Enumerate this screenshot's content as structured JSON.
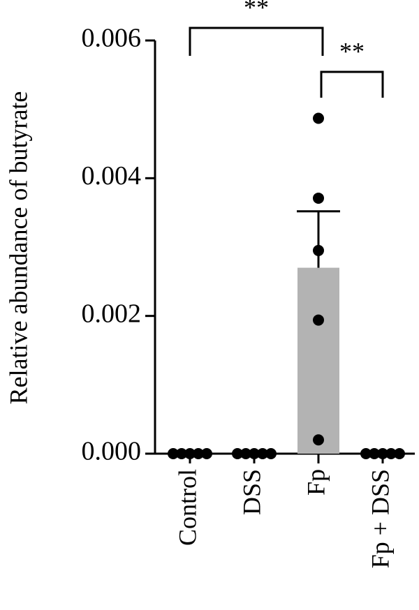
{
  "chart_data": {
    "type": "bar",
    "ylabel": "Relative abundance of butyrate",
    "categories": [
      "Control",
      "DSS",
      "Fp",
      "Fp + DSS"
    ],
    "values": [
      0,
      0,
      0.0027,
      0
    ],
    "errors": [
      null,
      null,
      0.00082,
      null
    ],
    "points": [
      [
        0,
        0,
        0,
        0,
        0
      ],
      [
        0,
        0,
        0,
        0,
        0
      ],
      [
        0.00487,
        0.00371,
        0.00295,
        0.00194,
        0.0002
      ],
      [
        0,
        0,
        0,
        0,
        0
      ]
    ],
    "color": "#b3b3b3",
    "point_color": "#000000",
    "ylim": [
      0,
      0.006
    ],
    "yticks": [
      {
        "value": 0,
        "label": "0.000"
      },
      0.002,
      0.004,
      0.006
    ],
    "annotations": [
      {
        "text": "**",
        "from": 0,
        "to": 2
      },
      {
        "text": "**",
        "from": 2,
        "to": 3
      }
    ]
  }
}
